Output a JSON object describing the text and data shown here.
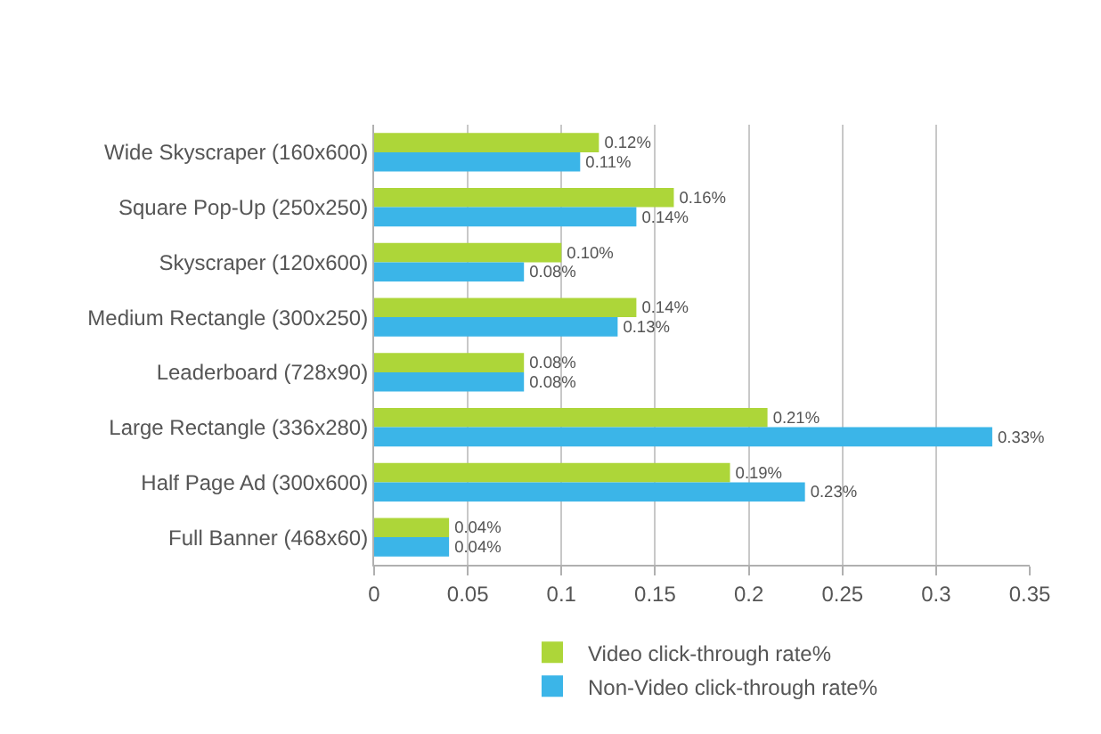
{
  "chart_data": {
    "type": "bar",
    "orientation": "horizontal",
    "categories": [
      "Wide Skyscraper (160x600)",
      "Square Pop-Up (250x250)",
      "Skyscraper (120x600)",
      "Medium Rectangle (300x250)",
      "Leaderboard (728x90)",
      "Large Rectangle (336x280)",
      "Half Page Ad (300x600)",
      "Full Banner (468x60)"
    ],
    "series": [
      {
        "name": "Video click-through rate%",
        "color": "#add639",
        "values": [
          0.12,
          0.16,
          0.1,
          0.14,
          0.08,
          0.21,
          0.19,
          0.04
        ],
        "value_labels": [
          "0.12%",
          "0.16%",
          "0.10%",
          "0.14%",
          "0.08%",
          "0.21%",
          "0.19%",
          "0.04%"
        ]
      },
      {
        "name": "Non-Video click-through rate%",
        "color": "#3bb5e8",
        "values": [
          0.11,
          0.14,
          0.08,
          0.13,
          0.08,
          0.33,
          0.23,
          0.04
        ],
        "value_labels": [
          "0.11%",
          "0.14%",
          "0.08%",
          "0.13%",
          "0.08%",
          "0.33%",
          "0.23%",
          "0.04%"
        ]
      }
    ],
    "xlim": [
      0,
      0.35
    ],
    "xticks": [
      0,
      0.05,
      0.1,
      0.15,
      0.2,
      0.25,
      0.3,
      0.35
    ],
    "grid": "x",
    "legend": "bottom"
  }
}
